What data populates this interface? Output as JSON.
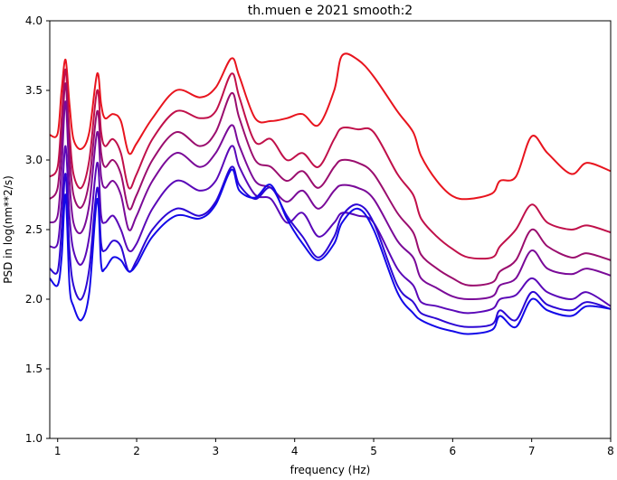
{
  "chart_data": {
    "type": "line",
    "title": "th.muen e 2021 smooth:2",
    "xlabel": "frequency (Hz)",
    "ylabel": "PSD in log(nm**2/s)",
    "xlim": [
      0.9,
      8.0
    ],
    "ylim": [
      1.0,
      4.0
    ],
    "xticks": [
      1,
      2,
      3,
      4,
      5,
      6,
      7,
      8
    ],
    "xtick_labels": [
      "1",
      "2",
      "3",
      "4",
      "5",
      "6",
      "7",
      "8"
    ],
    "yticks": [
      1.0,
      1.5,
      2.0,
      2.5,
      3.0,
      3.5,
      4.0
    ],
    "ytick_labels": [
      "1.0",
      "1.5",
      "2.0",
      "2.5",
      "3.0",
      "3.5",
      "4.0"
    ],
    "grid": false,
    "legend": "none",
    "colors": [
      "#e8141e",
      "#c0104a",
      "#9a0d6e",
      "#7a0a98",
      "#5a08b8",
      "#2c06d4",
      "#1208e8"
    ],
    "x": [
      0.9,
      1.0,
      1.05,
      1.1,
      1.15,
      1.2,
      1.3,
      1.4,
      1.5,
      1.55,
      1.6,
      1.7,
      1.8,
      1.9,
      2.0,
      2.2,
      2.5,
      2.8,
      3.0,
      3.2,
      3.3,
      3.5,
      3.7,
      3.9,
      4.1,
      4.3,
      4.5,
      4.6,
      4.8,
      5.0,
      5.3,
      5.5,
      5.6,
      5.8,
      6.0,
      6.2,
      6.5,
      6.6,
      6.8,
      7.0,
      7.2,
      7.5,
      7.7,
      8.0
    ],
    "series": [
      {
        "values": [
          3.18,
          3.19,
          3.5,
          3.72,
          3.4,
          3.15,
          3.08,
          3.2,
          3.62,
          3.4,
          3.3,
          3.33,
          3.28,
          3.05,
          3.12,
          3.3,
          3.5,
          3.45,
          3.52,
          3.73,
          3.6,
          3.3,
          3.28,
          3.3,
          3.33,
          3.25,
          3.5,
          3.75,
          3.72,
          3.6,
          3.35,
          3.2,
          3.03,
          2.85,
          2.74,
          2.72,
          2.76,
          2.85,
          2.88,
          3.17,
          3.05,
          2.9,
          2.98,
          2.92
        ]
      },
      {
        "values": [
          2.88,
          2.95,
          3.3,
          3.65,
          3.2,
          2.9,
          2.8,
          3.0,
          3.5,
          3.2,
          3.1,
          3.15,
          3.05,
          2.8,
          2.9,
          3.15,
          3.35,
          3.3,
          3.35,
          3.62,
          3.45,
          3.13,
          3.15,
          3.0,
          3.05,
          2.95,
          3.15,
          3.23,
          3.22,
          3.2,
          2.9,
          2.75,
          2.58,
          2.45,
          2.36,
          2.3,
          2.3,
          2.38,
          2.5,
          2.68,
          2.55,
          2.5,
          2.53,
          2.48
        ]
      },
      {
        "values": [
          2.72,
          2.8,
          3.15,
          3.55,
          3.05,
          2.75,
          2.66,
          2.85,
          3.35,
          3.05,
          2.95,
          3.0,
          2.9,
          2.65,
          2.75,
          3.0,
          3.2,
          3.1,
          3.2,
          3.48,
          3.3,
          3.0,
          2.95,
          2.85,
          2.92,
          2.8,
          2.95,
          3.0,
          2.98,
          2.9,
          2.62,
          2.48,
          2.32,
          2.22,
          2.15,
          2.1,
          2.12,
          2.2,
          2.28,
          2.5,
          2.38,
          2.3,
          2.33,
          2.28
        ]
      },
      {
        "values": [
          2.55,
          2.6,
          2.95,
          3.42,
          2.85,
          2.55,
          2.48,
          2.68,
          3.2,
          2.88,
          2.8,
          2.85,
          2.75,
          2.5,
          2.6,
          2.85,
          3.05,
          2.95,
          3.05,
          3.25,
          3.1,
          2.85,
          2.8,
          2.7,
          2.78,
          2.65,
          2.78,
          2.82,
          2.8,
          2.72,
          2.42,
          2.3,
          2.15,
          2.08,
          2.02,
          2.0,
          2.02,
          2.1,
          2.15,
          2.35,
          2.22,
          2.18,
          2.22,
          2.17
        ]
      },
      {
        "values": [
          2.38,
          2.4,
          2.7,
          3.1,
          2.6,
          2.35,
          2.25,
          2.45,
          2.98,
          2.6,
          2.55,
          2.6,
          2.5,
          2.35,
          2.4,
          2.65,
          2.85,
          2.78,
          2.85,
          3.1,
          2.95,
          2.75,
          2.72,
          2.55,
          2.62,
          2.45,
          2.55,
          2.62,
          2.6,
          2.55,
          2.22,
          2.1,
          1.98,
          1.95,
          1.92,
          1.9,
          1.93,
          2.0,
          2.03,
          2.15,
          2.05,
          2.0,
          2.05,
          1.95
        ]
      },
      {
        "values": [
          2.22,
          2.2,
          2.5,
          2.9,
          2.35,
          2.1,
          2.0,
          2.22,
          2.8,
          2.4,
          2.35,
          2.42,
          2.38,
          2.2,
          2.28,
          2.5,
          2.65,
          2.6,
          2.7,
          2.95,
          2.82,
          2.72,
          2.8,
          2.6,
          2.45,
          2.3,
          2.45,
          2.6,
          2.68,
          2.55,
          2.1,
          1.98,
          1.9,
          1.86,
          1.82,
          1.8,
          1.82,
          1.92,
          1.85,
          2.05,
          1.96,
          1.92,
          1.98,
          1.93
        ]
      },
      {
        "values": [
          2.15,
          2.1,
          2.3,
          2.75,
          2.1,
          1.95,
          1.85,
          2.05,
          2.72,
          2.25,
          2.22,
          2.3,
          2.28,
          2.2,
          2.25,
          2.45,
          2.6,
          2.58,
          2.68,
          2.93,
          2.78,
          2.73,
          2.82,
          2.58,
          2.4,
          2.28,
          2.4,
          2.55,
          2.65,
          2.5,
          2.05,
          1.9,
          1.85,
          1.8,
          1.77,
          1.75,
          1.78,
          1.88,
          1.8,
          2.0,
          1.92,
          1.88,
          1.95,
          1.93
        ]
      }
    ]
  }
}
